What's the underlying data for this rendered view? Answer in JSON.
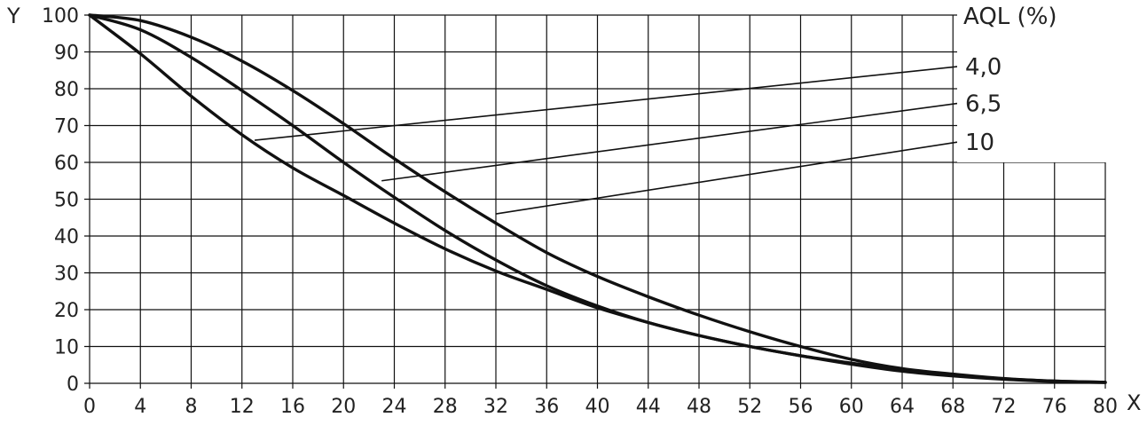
{
  "chart_data": {
    "type": "line",
    "title": "",
    "xlabel": "X",
    "ylabel": "Y",
    "xlim": [
      0,
      80
    ],
    "ylim": [
      0,
      100
    ],
    "x_ticks": [
      "0",
      "4",
      "8",
      "12",
      "16",
      "20",
      "24",
      "28",
      "32",
      "36",
      "40",
      "44",
      "48",
      "52",
      "56",
      "60",
      "64",
      "68",
      "72",
      "76",
      "80"
    ],
    "y_ticks": [
      "0",
      "10",
      "20",
      "30",
      "40",
      "50",
      "60",
      "70",
      "80",
      "90",
      "100"
    ],
    "grid": true,
    "legend_title": "AQL (%)",
    "x": [
      0,
      4,
      8,
      12,
      16,
      20,
      24,
      28,
      32,
      36,
      40,
      44,
      48,
      52,
      56,
      60,
      64,
      68,
      72,
      76,
      80
    ],
    "series": [
      {
        "name": "4,0",
        "label_anchor": [
          13,
          66
        ],
        "values": [
          100,
          98.5,
          94,
          87.5,
          79.5,
          70.5,
          61,
          52,
          43.5,
          35.5,
          29,
          23.5,
          18.5,
          14,
          10,
          6.5,
          4,
          2.5,
          1.3,
          0.6,
          0.3
        ]
      },
      {
        "name": "6,5",
        "label_anchor": [
          23,
          55
        ],
        "values": [
          100,
          96,
          88.5,
          79.5,
          70,
          60,
          50.5,
          41.5,
          33.5,
          26.5,
          21,
          16.5,
          13,
          10,
          7.5,
          5.5,
          3.5,
          2.2,
          1.2,
          0.6,
          0.3
        ]
      },
      {
        "name": "10",
        "label_anchor": [
          32,
          46
        ],
        "values": [
          100,
          89.5,
          78,
          67.5,
          58.5,
          51,
          43.5,
          36.5,
          30.5,
          25.5,
          20.5,
          16.5,
          13,
          10,
          7.5,
          5.2,
          3.3,
          2,
          1.1,
          0.5,
          0.2
        ]
      }
    ]
  }
}
